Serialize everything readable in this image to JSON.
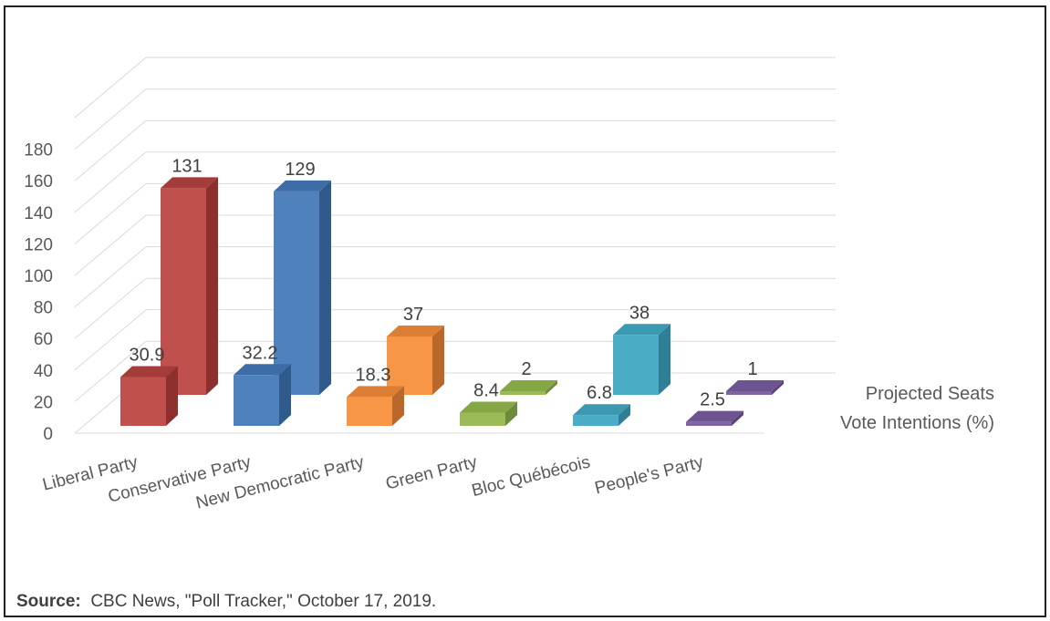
{
  "source": {
    "label": "Source:",
    "text": "CBC News, \"Poll Tracker,\" October 17, 2019."
  },
  "chart_data": {
    "type": "bar",
    "categories": [
      "Liberal Party",
      "Conservative Party",
      "New Democratic Party",
      "Green Party",
      "Bloc Québécois",
      "People's Party"
    ],
    "series": [
      {
        "name": "Vote Intentions (%)",
        "values": [
          30.9,
          32.2,
          18.3,
          8.4,
          6.8,
          2.5
        ]
      },
      {
        "name": "Projected Seats",
        "values": [
          131,
          129,
          37,
          2,
          38,
          1
        ]
      }
    ],
    "colors": [
      {
        "front": "#c0504d",
        "side": "#8c2f2d",
        "top": "#a43c3a"
      },
      {
        "front": "#4f81bd",
        "side": "#2f5a8c",
        "top": "#3e6ca6"
      },
      {
        "front": "#f79646",
        "side": "#b9672a",
        "top": "#dc7f34"
      },
      {
        "front": "#9bbb59",
        "side": "#6f8a3a",
        "top": "#86a746"
      },
      {
        "front": "#4bacc6",
        "side": "#2e7f96",
        "top": "#3c99b2"
      },
      {
        "front": "#8064a2",
        "side": "#5a4277",
        "top": "#6e5391"
      }
    ],
    "yticks": [
      "0",
      "20",
      "40",
      "60",
      "80",
      "100",
      "120",
      "140",
      "160",
      "180"
    ],
    "ylim": [
      0,
      180
    ],
    "grid": true,
    "legend": "right",
    "depth": "3d"
  }
}
